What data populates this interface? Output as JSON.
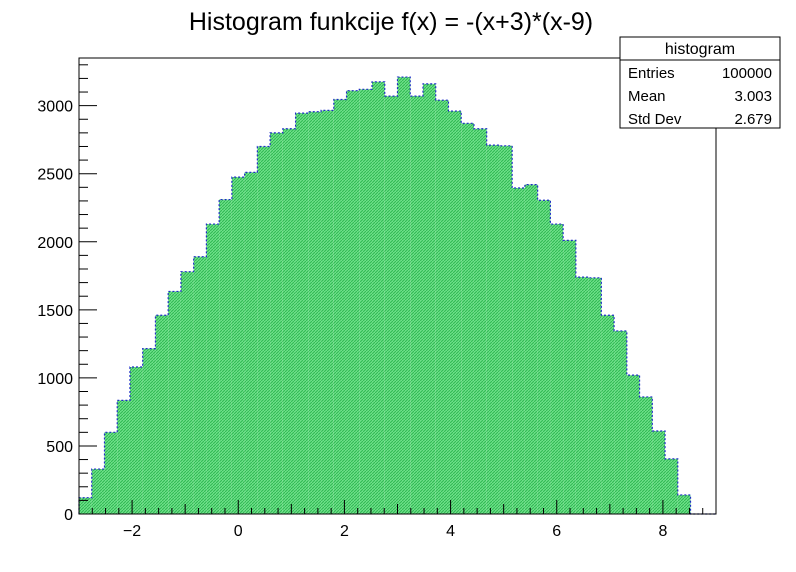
{
  "chart_data": {
    "type": "bar",
    "title": "Histogram funkcije f(x) = -(x+3)*(x-9)",
    "xlabel": "",
    "ylabel": "",
    "xlim": [
      -3,
      9
    ],
    "ylim": [
      0,
      3350
    ],
    "bin_width": 0.24,
    "x_bin_starts": [
      -3.0,
      -2.76,
      -2.52,
      -2.28,
      -2.04,
      -1.8,
      -1.56,
      -1.32,
      -1.08,
      -0.84,
      -0.6,
      -0.36,
      -0.12,
      0.12,
      0.36,
      0.6,
      0.84,
      1.08,
      1.32,
      1.56,
      1.8,
      2.04,
      2.28,
      2.52,
      2.76,
      3.0,
      3.24,
      3.48,
      3.72,
      3.96,
      4.2,
      4.44,
      4.68,
      4.92,
      5.16,
      5.4,
      5.64,
      5.88,
      6.12,
      6.36,
      6.6,
      6.84,
      7.08,
      7.32,
      7.56,
      7.8,
      8.04,
      8.28,
      8.52,
      8.76
    ],
    "values": [
      120,
      330,
      600,
      835,
      1080,
      1215,
      1460,
      1635,
      1780,
      1890,
      2130,
      2310,
      2475,
      2510,
      2700,
      2800,
      2830,
      2945,
      2955,
      2965,
      3045,
      3110,
      3120,
      3175,
      3070,
      3210,
      3070,
      3160,
      3040,
      2960,
      2870,
      2830,
      2710,
      2705,
      2395,
      2420,
      2305,
      2130,
      2010,
      1740,
      1735,
      1460,
      1345,
      1020,
      860,
      610,
      405,
      140,
      0,
      0
    ],
    "x_ticks": [
      "−2",
      "0",
      "2",
      "4",
      "6",
      "8"
    ],
    "x_tick_values": [
      -2,
      0,
      2,
      4,
      6,
      8
    ],
    "y_ticks": [
      "0",
      "500",
      "1000",
      "1500",
      "2000",
      "2500",
      "3000"
    ],
    "y_tick_values": [
      0,
      500,
      1000,
      1500,
      2000,
      2500,
      3000
    ],
    "grid": false,
    "legend": "top-right",
    "colors": {
      "fill": "#4fd16f",
      "line": "#1f2cc8",
      "frame": "#000000"
    },
    "stats_box": {
      "title": "histogram",
      "rows": [
        {
          "label": "Entries",
          "value": "100000"
        },
        {
          "label": "Mean",
          "value": "3.003"
        },
        {
          "label": "Std Dev",
          "value": "2.679"
        }
      ]
    }
  }
}
